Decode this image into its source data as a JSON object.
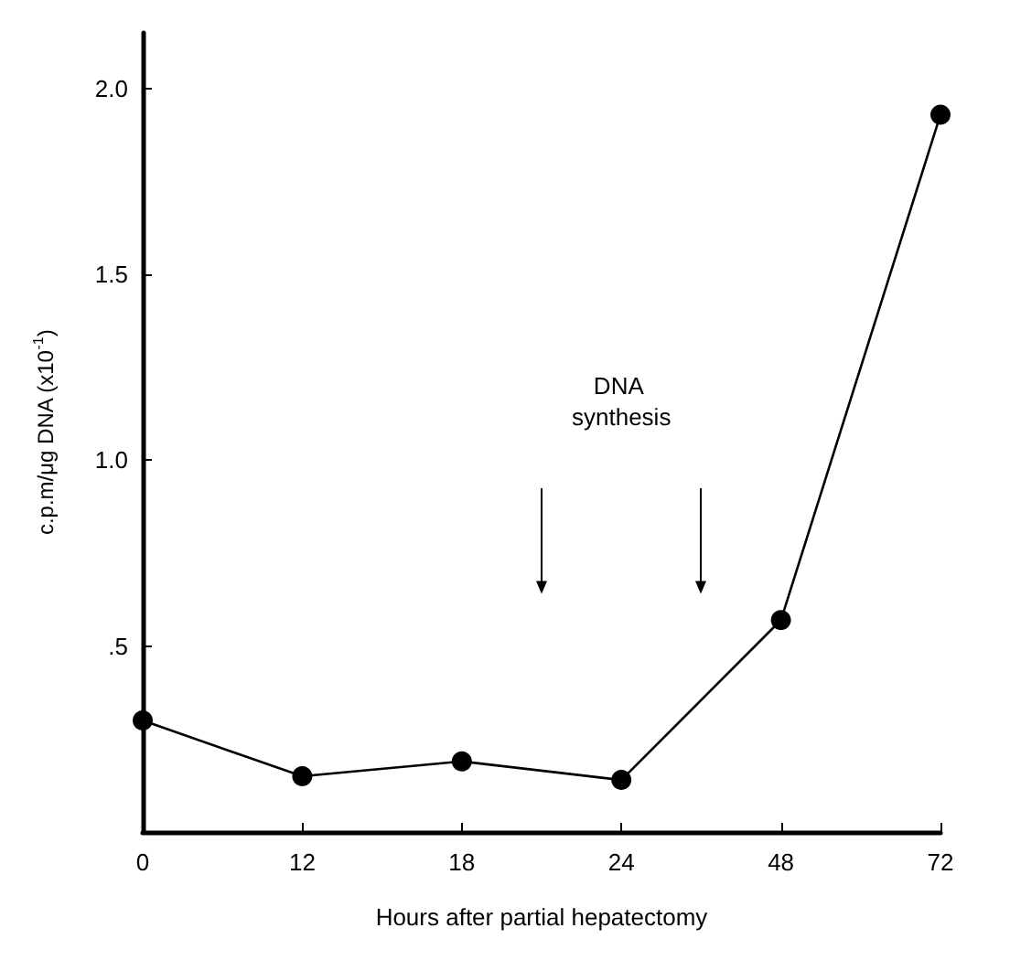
{
  "chart_data": {
    "type": "line",
    "xlabel": "Hours after partial hepatectomy",
    "ylabel": "c.p.m/μg DNA (x10$^{-1}$)",
    "categories": [
      "0",
      "12",
      "18",
      "24",
      "48",
      "72"
    ],
    "series": [
      {
        "color": "#000000",
        "values": [
          0.3,
          0.15,
          0.19,
          0.14,
          0.57,
          1.93
        ]
      }
    ],
    "ylim": [
      0,
      2.15
    ],
    "yticks": [
      {
        "value": 0.5,
        "label": ".5"
      },
      {
        "value": 1,
        "label": "1.0"
      },
      {
        "value": 1.5,
        "label": "1.5"
      },
      {
        "value": 2,
        "label": "2.0"
      }
    ],
    "annotations": [
      "DNA synthesis"
    ],
    "marker": "circle",
    "line_style": "solid"
  }
}
